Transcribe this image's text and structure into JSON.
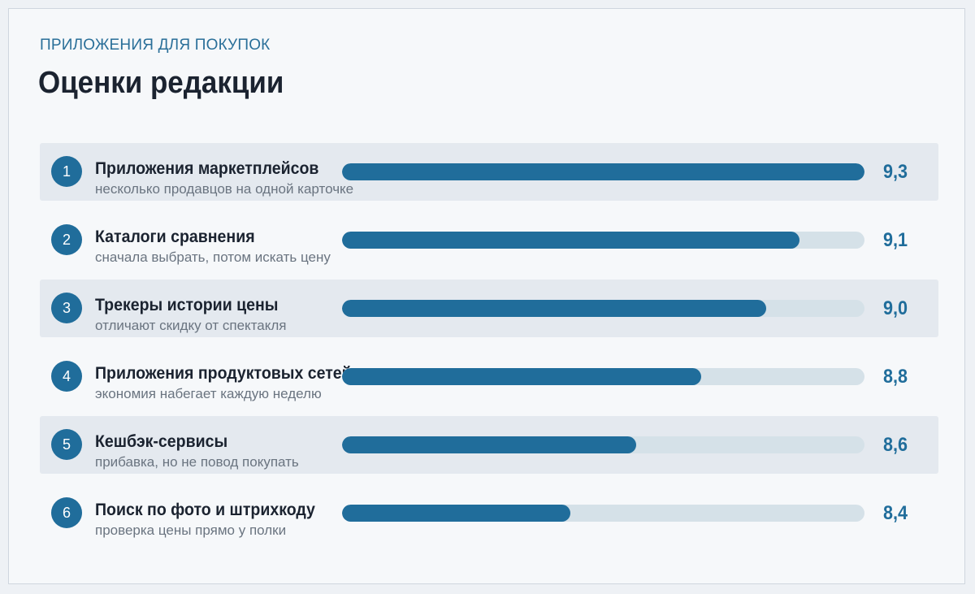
{
  "header": {
    "eyebrow": "ПРИЛОЖЕНИЯ ДЛЯ ПОКУПОК",
    "title": "Оценки редакции"
  },
  "colors": {
    "accent": "#206d9b",
    "track": "#d5e1e8",
    "row_shade": "#e4e9ef",
    "text": "#1b2330",
    "muted": "#6a7480"
  },
  "chart_data": {
    "type": "bar",
    "orientation": "horizontal",
    "title": "Оценки редакции",
    "categories": [
      "Приложения маркетплейсов",
      "Каталоги сравнения",
      "Трекеры истории цены",
      "Приложения продуктовых сетей",
      "Кешбэк-сервисы",
      "Поиск по фото и штрихкоду"
    ],
    "values": [
      9.3,
      9.1,
      9.0,
      8.8,
      8.6,
      8.4
    ],
    "xlim": [
      7.7,
      9.3
    ],
    "grid": false
  },
  "rows": [
    {
      "rank": "1",
      "name": "Приложения маркетплейсов",
      "sub": "несколько продавцов на одной карточке",
      "value_label": "9,3"
    },
    {
      "rank": "2",
      "name": "Каталоги сравнения",
      "sub": "сначала выбрать, потом искать цену",
      "value_label": "9,1"
    },
    {
      "rank": "3",
      "name": "Трекеры истории цены",
      "sub": "отличают скидку от спектакля",
      "value_label": "9,0"
    },
    {
      "rank": "4",
      "name": "Приложения продуктовых сетей",
      "sub": "экономия набегает каждую неделю",
      "value_label": "8,8"
    },
    {
      "rank": "5",
      "name": "Кешбэк-сервисы",
      "sub": "прибавка, но не повод покупать",
      "value_label": "8,6"
    },
    {
      "rank": "6",
      "name": "Поиск по фото и штрихкоду",
      "sub": "проверка цены прямо у полки",
      "value_label": "8,4"
    }
  ]
}
